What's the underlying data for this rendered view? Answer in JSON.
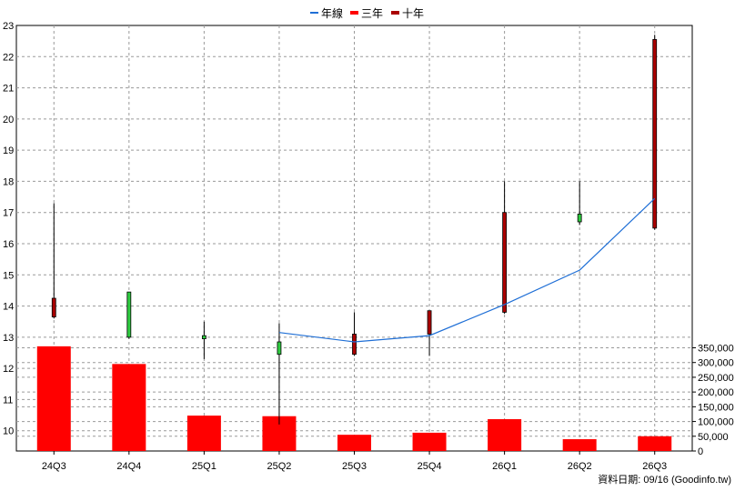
{
  "legend": [
    {
      "label": "年線",
      "color": "#1f6fd6",
      "kind": "line"
    },
    {
      "label": "三年",
      "color": "#ff0000",
      "kind": "bar"
    },
    {
      "label": "十年",
      "color": "#aa0000",
      "kind": "bar"
    }
  ],
  "footer": "資料日期: 09/16  (Goodinfo.tw)",
  "chart_data": {
    "type": "candlestick",
    "categories": [
      "24Q3",
      "24Q4",
      "25Q1",
      "25Q2",
      "25Q3",
      "25Q4",
      "26Q1",
      "26Q2",
      "26Q3"
    ],
    "price": {
      "ylim": [
        9.35,
        23
      ],
      "ticks": [
        10,
        11,
        12,
        13,
        14,
        15,
        16,
        17,
        18,
        19,
        20,
        21,
        22,
        23
      ],
      "ohlc": [
        {
          "open": 13.65,
          "high": 17.3,
          "low": 13.6,
          "close": 14.25
        },
        {
          "open": 14.45,
          "high": 14.45,
          "low": 12.95,
          "close": 13.0
        },
        {
          "open": 13.05,
          "high": 13.5,
          "low": 12.3,
          "close": 12.95
        },
        {
          "open": 12.85,
          "high": 13.45,
          "low": 10.2,
          "close": 12.45
        },
        {
          "open": 12.45,
          "high": 13.8,
          "low": 12.4,
          "close": 13.1
        },
        {
          "open": 13.1,
          "high": 13.8,
          "low": 12.4,
          "close": 13.85
        },
        {
          "open": 13.8,
          "high": 18.0,
          "low": 13.75,
          "close": 17.0
        },
        {
          "open": 16.95,
          "high": 18.0,
          "low": 16.6,
          "close": 16.7
        },
        {
          "open": 16.5,
          "high": 22.7,
          "low": 16.45,
          "close": 22.55
        }
      ],
      "annual_line": [
        null,
        null,
        null,
        13.15,
        12.85,
        13.05,
        14.05,
        15.15,
        17.45
      ]
    },
    "volume": {
      "ylim": [
        0,
        370000
      ],
      "ticks": [
        0,
        50000,
        100000,
        150000,
        200000,
        250000,
        300000,
        350000
      ],
      "tick_labels": [
        "0",
        "50,000",
        "100,000",
        "150,000",
        "200,000",
        "250,000",
        "300,000",
        "350,000"
      ],
      "values": [
        355000,
        295000,
        120000,
        118000,
        55000,
        62000,
        108000,
        40000,
        50000
      ],
      "color": "#ff0000"
    },
    "up_color": "#aa0000",
    "down_color": "#2ecc40",
    "grid": true
  }
}
